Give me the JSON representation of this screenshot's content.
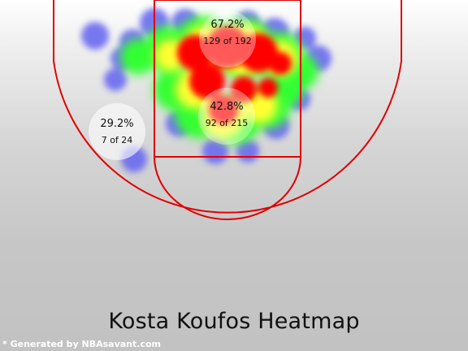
{
  "title": "Kosta Koufos Heatmap",
  "credit": "* Generated by NBAsavant.com",
  "colors": {
    "court_lines": "#e00000",
    "low_density": "#6b6bf0",
    "mid_density": "#33ff33",
    "high_density": "#ffff00",
    "peak_density": "#ff0000",
    "zone_circle": "#ffffff"
  },
  "zones": [
    {
      "id": "restricted-area",
      "pct": "67.2%",
      "count": "129 of 192"
    },
    {
      "id": "paint",
      "pct": "42.8%",
      "count": "92 of 215"
    },
    {
      "id": "left-midrange",
      "pct": "29.2%",
      "count": "7 of 24"
    }
  ]
}
